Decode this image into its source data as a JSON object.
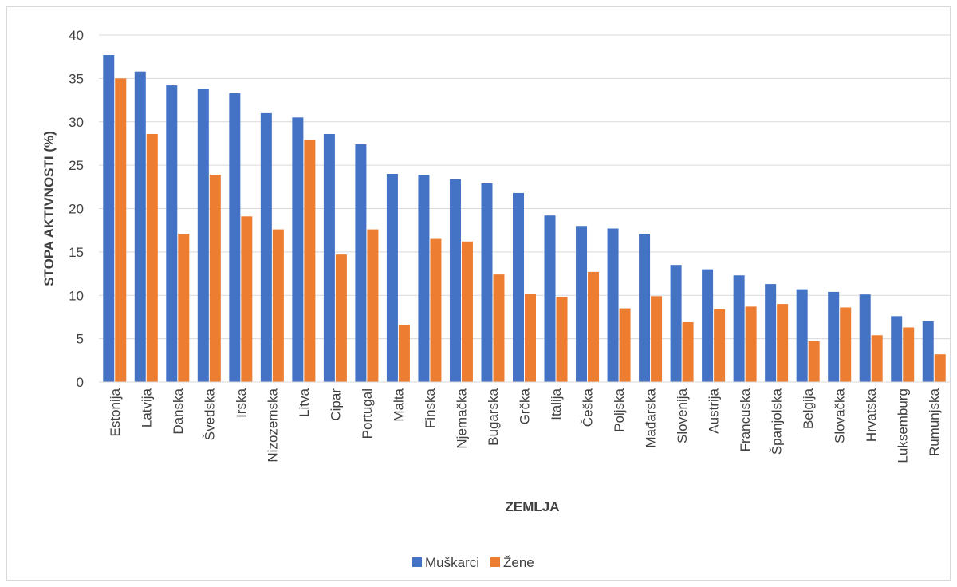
{
  "chart_data": {
    "type": "bar",
    "title": "",
    "xlabel": "ZEMLJA",
    "ylabel": "STOPA AKTIVNOSTI (%)",
    "ylim": [
      0,
      40
    ],
    "yticks": [
      0,
      5,
      10,
      15,
      20,
      25,
      30,
      35,
      40
    ],
    "grid": true,
    "legend_position": "bottom",
    "categories": [
      "Estonija",
      "Latvija",
      "Danska",
      "Švedska",
      "Irska",
      "Nizozemska",
      "Litva",
      "Cipar",
      "Portugal",
      "Malta",
      "Finska",
      "Njemačka",
      "Bugarska",
      "Grčka",
      "Italija",
      "Češka",
      "Poljska",
      "Mađarska",
      "Slovenija",
      "Austrija",
      "Francuska",
      "Španjolska",
      "Belgija",
      "Slovačka",
      "Hrvatska",
      "Luksemburg",
      "Rumunjska"
    ],
    "series": [
      {
        "name": "Muškarci",
        "color": "#4472c4",
        "values": [
          37.7,
          35.8,
          34.2,
          33.8,
          33.3,
          31.0,
          30.5,
          28.6,
          27.4,
          24.0,
          23.9,
          23.4,
          22.9,
          21.8,
          19.2,
          18.0,
          17.7,
          17.1,
          13.5,
          13.0,
          12.3,
          11.3,
          10.7,
          10.4,
          10.1,
          7.6,
          7.0
        ]
      },
      {
        "name": "Žene",
        "color": "#ed7d31",
        "values": [
          35.0,
          28.6,
          17.1,
          23.9,
          19.1,
          17.6,
          27.9,
          14.7,
          17.6,
          6.6,
          16.5,
          16.2,
          12.4,
          10.2,
          9.8,
          12.7,
          8.5,
          9.9,
          6.9,
          8.4,
          8.7,
          9.0,
          4.7,
          8.6,
          5.4,
          6.3,
          3.2
        ]
      }
    ]
  }
}
